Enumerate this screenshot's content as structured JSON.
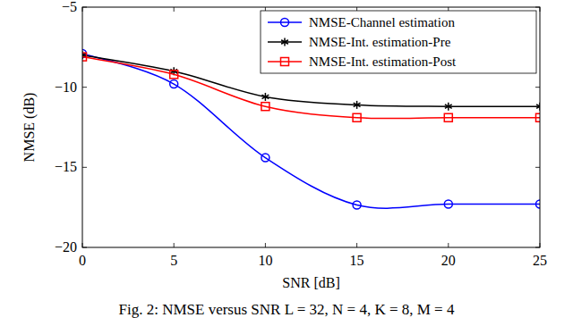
{
  "chart_data": {
    "type": "line",
    "caption": "Fig. 2: NMSE versus SNR L = 32, N = 4, K = 8, M = 4",
    "x_label": "SNR [dB]",
    "y_label": "NMSE (dB)",
    "x": [
      0,
      5,
      10,
      15,
      20,
      25
    ],
    "xlim": [
      0,
      25
    ],
    "xticks": [
      0,
      5,
      10,
      15,
      20,
      25
    ],
    "ylim": [
      -20,
      -5
    ],
    "yticks": [
      {
        "value": -20,
        "label": "−20"
      },
      {
        "value": -15,
        "label": "−15"
      },
      {
        "value": -10,
        "label": "−10"
      },
      {
        "value": -5,
        "label": "−5"
      }
    ],
    "grid": false,
    "legend": "upper right",
    "line_style": "smooth",
    "series": [
      {
        "name": "NMSE-Channel estimation",
        "color": "#0000ff",
        "marker": "circle",
        "values": [
          -7.9,
          -9.8,
          -14.4,
          -17.35,
          -17.3,
          -17.3
        ]
      },
      {
        "name": "NMSE-Int. estimation-Pre",
        "color": "#000000",
        "marker": "star",
        "values": [
          -8.0,
          -9.0,
          -10.6,
          -11.1,
          -11.2,
          -11.2
        ]
      },
      {
        "name": "NMSE-Int. estimation-Post",
        "color": "#ff0000",
        "marker": "square",
        "values": [
          -8.1,
          -9.2,
          -11.2,
          -11.9,
          -11.9,
          -11.9
        ]
      }
    ]
  }
}
